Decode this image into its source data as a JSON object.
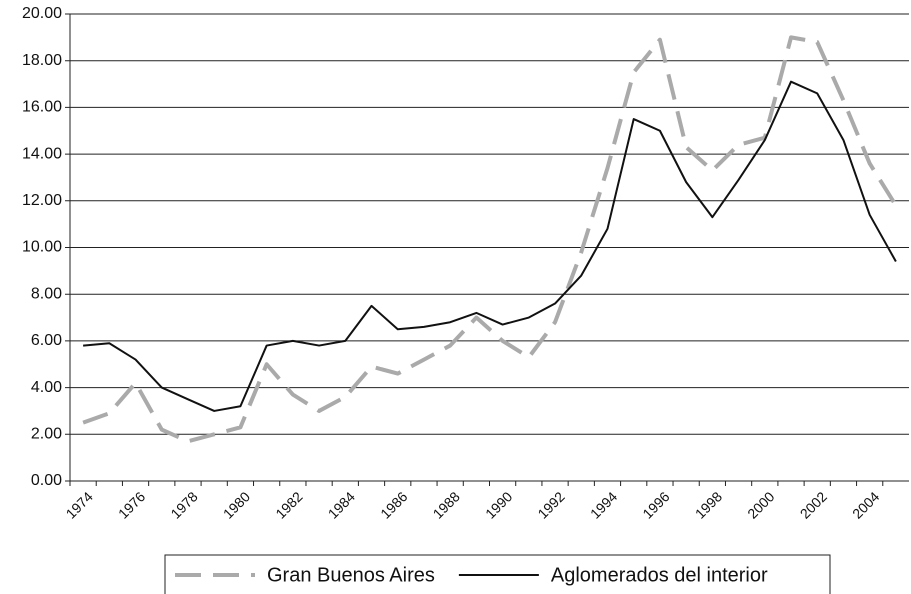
{
  "chart_data": {
    "type": "line",
    "categories": [
      "1974",
      null,
      "1976",
      null,
      "1978",
      null,
      "1980",
      null,
      "1982",
      null,
      "1984",
      null,
      "1986",
      null,
      "1988",
      null,
      "1990",
      null,
      "1992",
      null,
      "1994",
      null,
      "1996",
      null,
      "1998",
      null,
      "2000",
      null,
      "2002",
      null,
      "2004",
      null
    ],
    "series": [
      {
        "name": "Gran Buenos Aires",
        "color": "#aaaaaa",
        "dashed": true,
        "values": [
          2.5,
          2.9,
          4.2,
          2.2,
          1.7,
          2.0,
          2.3,
          5.0,
          3.7,
          3.0,
          3.6,
          4.9,
          4.6,
          5.2,
          5.8,
          7.0,
          6.0,
          5.3,
          6.8,
          9.8,
          13.4,
          17.5,
          18.9,
          14.3,
          13.3,
          14.4,
          14.7,
          19.0,
          18.8,
          16.3,
          13.6,
          11.8
        ]
      },
      {
        "name": "Aglomerados del interior",
        "color": "#111111",
        "dashed": false,
        "values": [
          5.8,
          5.9,
          5.2,
          4.0,
          3.5,
          3.0,
          3.2,
          5.8,
          6.0,
          5.8,
          6.0,
          7.5,
          6.5,
          6.6,
          6.8,
          7.2,
          6.7,
          7.0,
          7.6,
          8.8,
          10.8,
          15.5,
          15.0,
          12.8,
          11.3,
          12.9,
          14.6,
          17.1,
          16.6,
          14.6,
          11.4,
          9.4
        ]
      }
    ],
    "ylim": [
      0,
      20
    ],
    "yticks": [
      {
        "value": 0,
        "label": "0.00"
      },
      {
        "value": 2,
        "label": "2.00"
      },
      {
        "value": 4,
        "label": "4.00"
      },
      {
        "value": 6,
        "label": "6.00"
      },
      {
        "value": 8,
        "label": "8.00"
      },
      {
        "value": 10,
        "label": "10.00"
      },
      {
        "value": 12,
        "label": "12.00"
      },
      {
        "value": 14,
        "label": "14.00"
      },
      {
        "value": 16,
        "label": "16.00"
      },
      {
        "value": 18,
        "label": "18.00"
      },
      {
        "value": 20,
        "label": "20.00"
      }
    ],
    "grid": true,
    "legend": "bottom"
  }
}
